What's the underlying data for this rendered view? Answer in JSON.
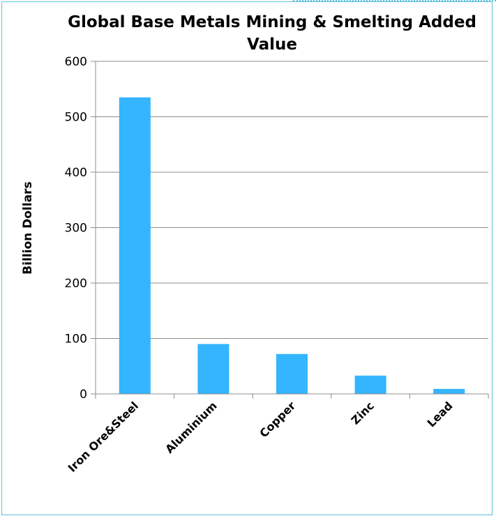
{
  "chart_data": {
    "type": "bar",
    "title": "Global Base Metals Mining & Smelting Added Value",
    "xlabel": "",
    "ylabel": "Billion Dollars",
    "categories": [
      "Iron Ore&Steel",
      "Aluminium",
      "Copper",
      "Zinc",
      "Lead"
    ],
    "values": [
      535,
      90,
      72,
      33,
      9
    ],
    "ylim": [
      0,
      600
    ],
    "yticks": [
      0,
      100,
      200,
      300,
      400,
      500,
      600
    ],
    "grid": true,
    "legend": "none",
    "bar_color": "#33b5ff",
    "grid_color": "#8c8c8c",
    "frame_color": "#5bc0de"
  }
}
